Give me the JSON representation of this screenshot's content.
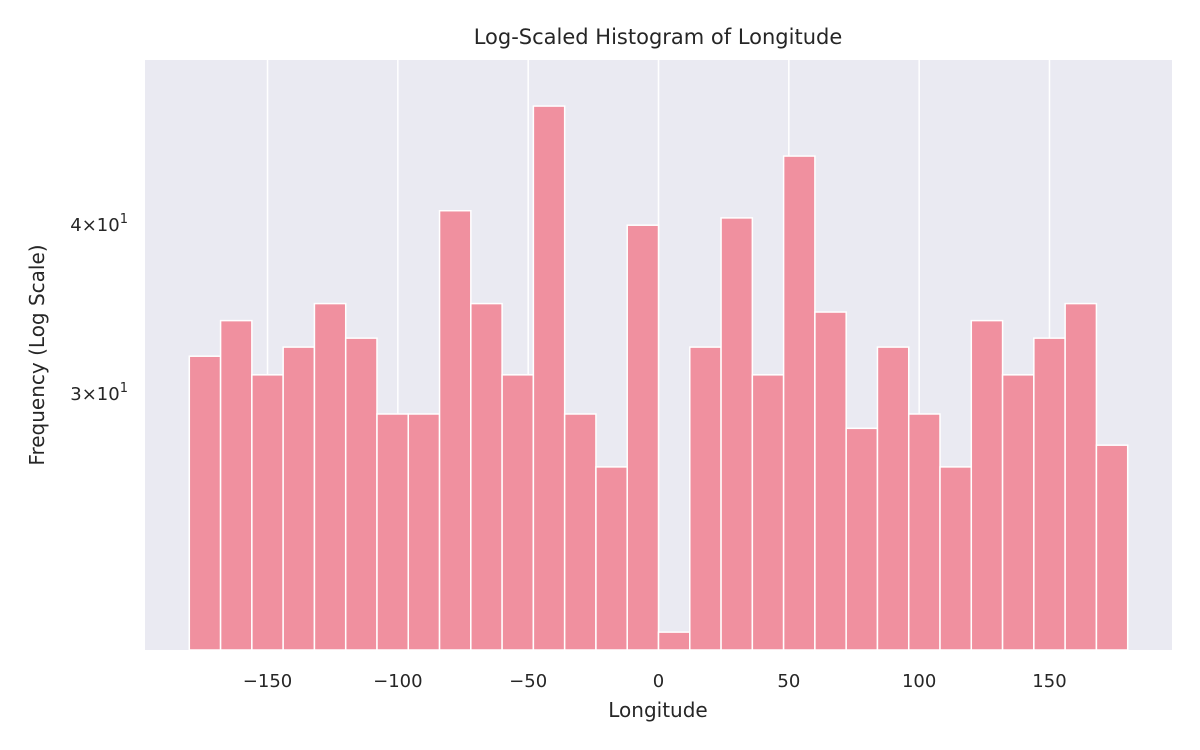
{
  "chart_data": {
    "type": "bar",
    "title": "Log-Scaled Histogram of Longitude",
    "xlabel": "Longitude",
    "ylabel": "Frequency (Log Scale)",
    "yscale": "log",
    "xlim": [
      -197,
      197
    ],
    "ylim": [
      19.4,
      53
    ],
    "grid": {
      "x": true,
      "y": false
    },
    "color": "#f0909f",
    "plot_background": "#eaeaf2",
    "x_ticks": [
      {
        "value": -150,
        "label": "−150"
      },
      {
        "value": -100,
        "label": "−100"
      },
      {
        "value": -50,
        "label": "−50"
      },
      {
        "value": 0,
        "label": "0"
      },
      {
        "value": 50,
        "label": "50"
      },
      {
        "value": 100,
        "label": "100"
      },
      {
        "value": 150,
        "label": "150"
      }
    ],
    "y_ticks": [
      {
        "value": 30,
        "label": "3×10",
        "exp": "1"
      },
      {
        "value": 40,
        "label": "4×10",
        "exp": "1"
      }
    ],
    "bin_start": -180,
    "bin_width": 12,
    "counts": [
      32,
      34,
      31,
      32.5,
      35,
      33,
      29,
      29,
      41,
      35,
      31,
      49,
      29,
      26.5,
      40,
      20,
      32.5,
      40.5,
      31,
      45,
      34.5,
      28.3,
      32.5,
      29,
      26.5,
      34,
      31,
      33,
      35,
      27.5
    ]
  }
}
